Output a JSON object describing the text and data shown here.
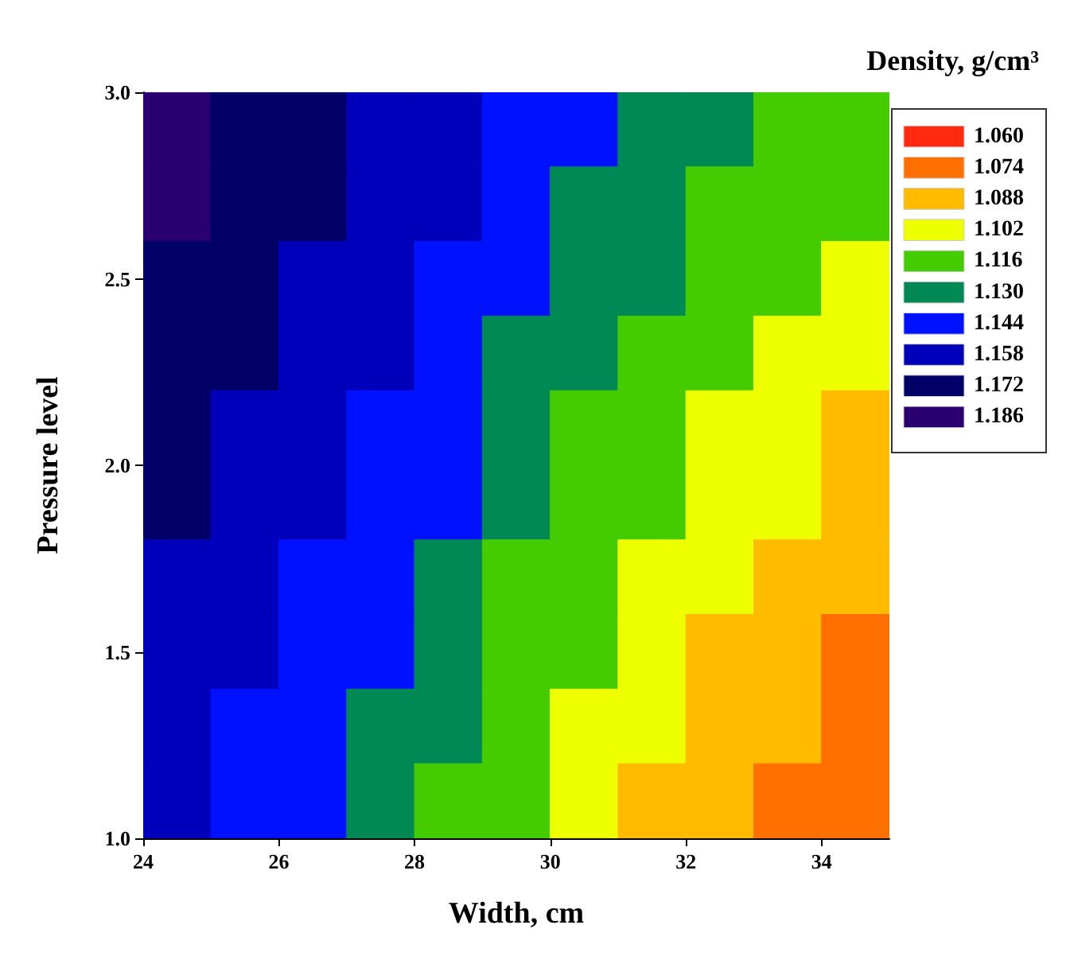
{
  "chart_data": {
    "type": "heatmap",
    "xlabel": "Width, cm",
    "ylabel": "Pressure level",
    "legend_title": "Density, g/cm³",
    "x": [
      24.5,
      25.5,
      26.5,
      27.5,
      28.5,
      29.5,
      30.5,
      31.5,
      32.5,
      33.5,
      34.5
    ],
    "y": [
      2.9,
      2.7,
      2.5,
      2.3,
      2.1,
      1.9,
      1.7,
      1.5,
      1.3,
      1.1
    ],
    "cells": [
      [
        1.182,
        1.176,
        1.17,
        1.163,
        1.154,
        1.147,
        1.139,
        1.132,
        1.126,
        1.121,
        1.117
      ],
      [
        1.179,
        1.173,
        1.166,
        1.159,
        1.151,
        1.143,
        1.135,
        1.128,
        1.121,
        1.116,
        1.112
      ],
      [
        1.176,
        1.171,
        1.164,
        1.157,
        1.148,
        1.14,
        1.131,
        1.124,
        1.117,
        1.112,
        1.106
      ],
      [
        1.173,
        1.168,
        1.161,
        1.154,
        1.145,
        1.136,
        1.127,
        1.12,
        1.113,
        1.107,
        1.101
      ],
      [
        1.17,
        1.165,
        1.158,
        1.15,
        1.142,
        1.132,
        1.123,
        1.116,
        1.108,
        1.101,
        1.094
      ],
      [
        1.167,
        1.161,
        1.154,
        1.147,
        1.138,
        1.128,
        1.119,
        1.112,
        1.104,
        1.097,
        1.089
      ],
      [
        1.163,
        1.157,
        1.15,
        1.143,
        1.134,
        1.123,
        1.114,
        1.108,
        1.099,
        1.092,
        1.084
      ],
      [
        1.159,
        1.153,
        1.146,
        1.139,
        1.13,
        1.119,
        1.11,
        1.103,
        1.095,
        1.087,
        1.079
      ],
      [
        1.156,
        1.15,
        1.143,
        1.136,
        1.126,
        1.115,
        1.105,
        1.099,
        1.091,
        1.082,
        1.074
      ],
      [
        1.152,
        1.146,
        1.139,
        1.132,
        1.122,
        1.112,
        1.102,
        1.095,
        1.087,
        1.079,
        1.069
      ]
    ],
    "cticks": [
      {
        "value": 1.06,
        "label": "1.060"
      },
      {
        "value": 1.074,
        "label": "1.074"
      },
      {
        "value": 1.088,
        "label": "1.088"
      },
      {
        "value": 1.102,
        "label": "1.102"
      },
      {
        "value": 1.116,
        "label": "1.116"
      },
      {
        "value": 1.13,
        "label": "1.130"
      },
      {
        "value": 1.144,
        "label": "1.144"
      },
      {
        "value": 1.158,
        "label": "1.158"
      },
      {
        "value": 1.172,
        "label": "1.172"
      },
      {
        "value": 1.186,
        "label": "1.186"
      }
    ],
    "colors": [
      "#ff2a10",
      "#ff7000",
      "#ffbb00",
      "#eeff00",
      "#44cc00",
      "#008855",
      "#0011ff",
      "#0000bb",
      "#000066",
      "#2a0070"
    ],
    "xlim": [
      24,
      35
    ],
    "xticks": [
      24,
      26,
      28,
      30,
      32,
      34
    ],
    "ylim": [
      1,
      3
    ],
    "yticks": [
      {
        "value": 1,
        "label": "1.0"
      },
      {
        "value": 1.5,
        "label": "1.5"
      },
      {
        "value": 2,
        "label": "2.0"
      },
      {
        "value": 2.5,
        "label": "2.5"
      },
      {
        "value": 3,
        "label": "3.0"
      }
    ]
  }
}
